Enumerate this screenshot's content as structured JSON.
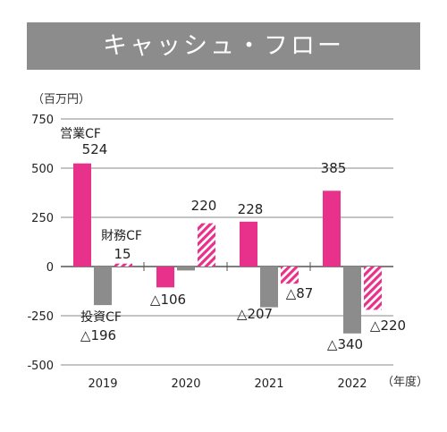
{
  "title": "キャッシュ・フロー",
  "unit_label": "（百万円）",
  "x_unit_label": "（年度）",
  "chart_data": {
    "type": "bar",
    "categories": [
      "2019",
      "2020",
      "2021",
      "2022"
    ],
    "ylim": [
      -500,
      750
    ],
    "yticks": [
      750,
      500,
      250,
      0,
      -250,
      -500
    ],
    "ytick_labels": [
      "750",
      "500",
      "250",
      "0",
      "-250",
      "-500"
    ],
    "grid": true,
    "series": [
      {
        "name": "営業CF",
        "color": "#e8318a",
        "pattern": "solid",
        "values": [
          524,
          -106,
          228,
          385
        ],
        "labels": [
          "524",
          "△106",
          "228",
          "385"
        ]
      },
      {
        "name": "投資CF",
        "color": "#8c8c8c",
        "pattern": "solid",
        "values": [
          -196,
          -20,
          -207,
          -340
        ],
        "labels": [
          "△196",
          "",
          "△207",
          "△340"
        ]
      },
      {
        "name": "財務CF",
        "color": "#e8318a",
        "pattern": "hatched",
        "values": [
          15,
          220,
          -87,
          -220
        ],
        "labels": [
          "15",
          "220",
          "△87",
          "△220"
        ]
      }
    ],
    "annotations": [
      "営業CF",
      "投資CF",
      "財務CF"
    ]
  }
}
